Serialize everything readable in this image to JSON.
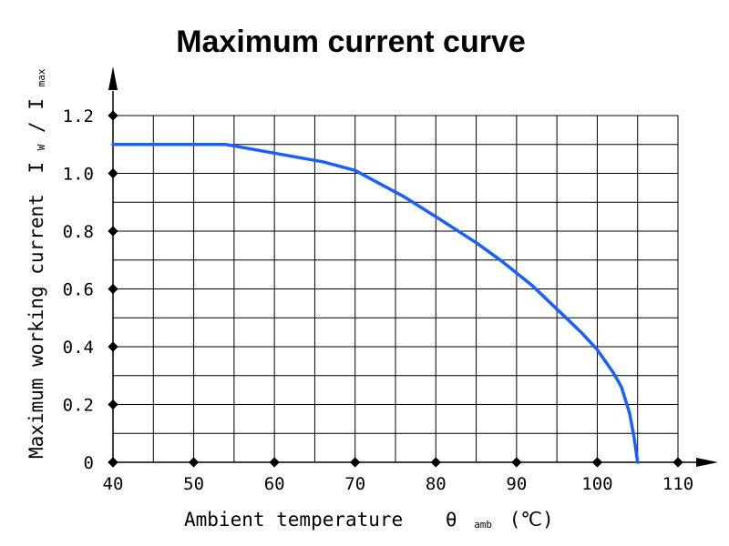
{
  "chart_data": {
    "type": "line",
    "title": "Maximum current curve",
    "xlabel": {
      "text": "Ambient temperature",
      "symbol": "θ",
      "symbol_subscript": "amb",
      "unit": "(℃)"
    },
    "ylabel": {
      "text": "Maximum working current",
      "symbol": "I",
      "symbol_subscript": "W",
      "separator": "/",
      "symbol2": "I",
      "symbol2_subscript": "max"
    },
    "xlim": [
      40,
      110
    ],
    "ylim": [
      0,
      1.2
    ],
    "x_ticks": [
      "40",
      "50",
      "60",
      "70",
      "80",
      "90",
      "100",
      "110"
    ],
    "y_ticks": [
      "0",
      "0.2",
      "0.4",
      "0.6",
      "0.8",
      "1.0",
      "1.2"
    ],
    "grid": true,
    "series": [
      {
        "x": [
          40,
          54,
          60,
          66,
          70,
          76,
          80,
          85,
          88,
          92,
          95,
          98,
          100,
          102,
          103,
          104,
          104.6,
          105
        ],
        "y": [
          1.1,
          1.1,
          1.07,
          1.04,
          1.01,
          0.92,
          0.85,
          0.76,
          0.7,
          0.61,
          0.53,
          0.45,
          0.39,
          0.31,
          0.26,
          0.17,
          0.08,
          0
        ],
        "color": "#1a5fff"
      }
    ]
  }
}
